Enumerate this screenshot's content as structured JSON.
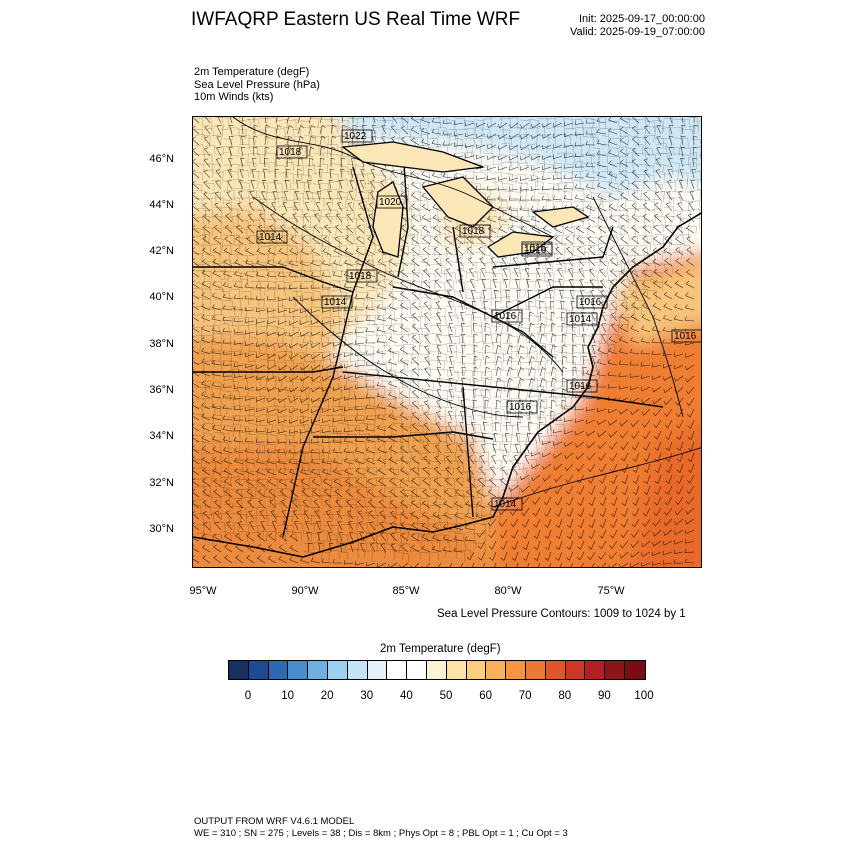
{
  "header": {
    "title": "IWFAQRP Eastern US Real Time WRF",
    "init": "Init: 2025-09-17_00:00:00",
    "valid": "Valid: 2025-09-19_07:00:00"
  },
  "variables": [
    "2m Temperature   (degF)",
    "Sea Level Pressure   (hPa)",
    "10m Winds   (kts)"
  ],
  "map": {
    "lat_labels": [
      "46°N",
      "44°N",
      "42°N",
      "40°N",
      "38°N",
      "36°N",
      "34°N",
      "32°N",
      "30°N"
    ],
    "lon_labels": [
      "95°W",
      "90°W",
      "85°W",
      "80°W",
      "75°W"
    ],
    "isobar_labels": [
      "1022",
      "1018",
      "1014",
      "1018",
      "1020",
      "1018",
      "1016",
      "1014",
      "1016",
      "1016",
      "1014",
      "1016",
      "1016",
      "1016",
      "1014",
      "1016"
    ],
    "colors": {
      "cold": "#cfe7f5",
      "cool": "#e8f3fa",
      "neutral": "#fdfbf4",
      "mild": "#fbe6b8",
      "warm": "#f6c47d",
      "hot": "#f0a14f",
      "hotter": "#ec8a3d",
      "ocean": "#ef7d33",
      "ocean_hot": "#e86a2a"
    }
  },
  "contour_note": "Sea Level Pressure Contours: 1009 to 1024 by 1",
  "colorbar": {
    "title": "2m Temperature  (degF)",
    "colors": [
      "#17325f",
      "#1f4a91",
      "#2c68b3",
      "#4a8bcb",
      "#6fb0e0",
      "#9bd0f0",
      "#c4e5f6",
      "#e4f3fb",
      "#ffffff",
      "#ffffff",
      "#fff2d4",
      "#fde3a8",
      "#fccf80",
      "#fab25a",
      "#f69441",
      "#ee7733",
      "#e2552b",
      "#cf3626",
      "#b41f22",
      "#8f1419",
      "#7a0d12"
    ],
    "ticks": [
      "0",
      "10",
      "20",
      "30",
      "40",
      "50",
      "60",
      "70",
      "80",
      "90",
      "100"
    ]
  },
  "footer": {
    "line1": "OUTPUT FROM WRF V4.6.1 MODEL",
    "line2": "WE = 310 ; SN = 275 ; Levels = 38 ; Dis = 8km ; Phys Opt = 8 ; PBL Opt = 1 ; Cu Opt = 3"
  }
}
